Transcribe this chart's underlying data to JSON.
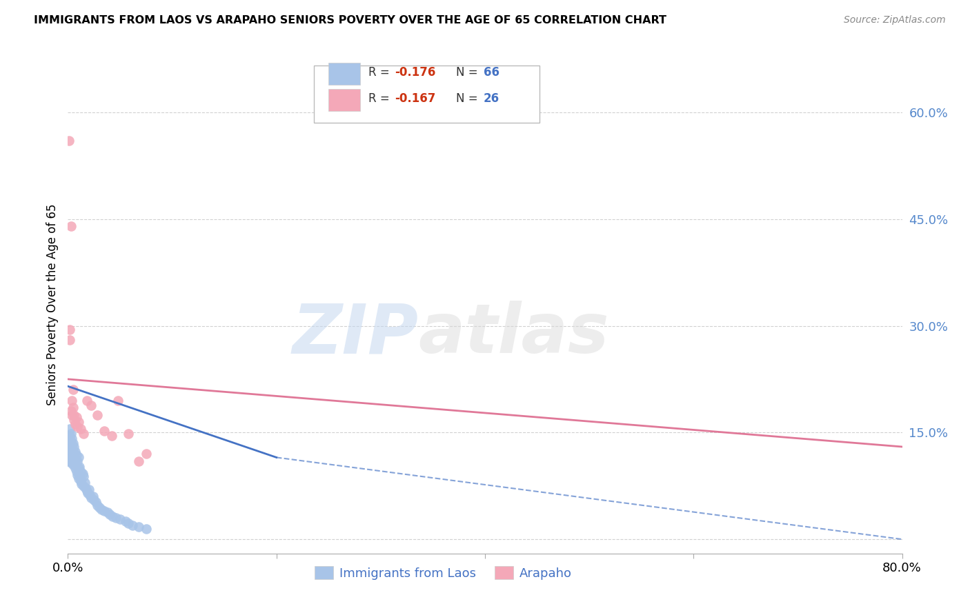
{
  "title": "IMMIGRANTS FROM LAOS VS ARAPAHO SENIORS POVERTY OVER THE AGE OF 65 CORRELATION CHART",
  "source": "Source: ZipAtlas.com",
  "ylabel": "Seniors Poverty Over the Age of 65",
  "xlim": [
    0.0,
    0.8
  ],
  "ylim": [
    -0.02,
    0.68
  ],
  "yticks": [
    0.0,
    0.15,
    0.3,
    0.45,
    0.6
  ],
  "ytick_labels": [
    "",
    "15.0%",
    "30.0%",
    "45.0%",
    "60.0%"
  ],
  "xticks": [
    0.0,
    0.2,
    0.4,
    0.6,
    0.8
  ],
  "xtick_labels": [
    "0.0%",
    "",
    "",
    "",
    "80.0%"
  ],
  "blue_label": "Immigrants from Laos",
  "pink_label": "Arapaho",
  "blue_R": "-0.176",
  "blue_N": "66",
  "pink_R": "-0.167",
  "pink_N": "26",
  "blue_color": "#a8c4e8",
  "pink_color": "#f4a8b8",
  "blue_line_color": "#4472c4",
  "pink_line_color": "#e07898",
  "watermark_zip": "ZIP",
  "watermark_atlas": "atlas",
  "blue_scatter_x": [
    0.001,
    0.001,
    0.001,
    0.002,
    0.002,
    0.002,
    0.002,
    0.002,
    0.003,
    0.003,
    0.003,
    0.003,
    0.003,
    0.004,
    0.004,
    0.004,
    0.004,
    0.005,
    0.005,
    0.005,
    0.005,
    0.006,
    0.006,
    0.006,
    0.007,
    0.007,
    0.007,
    0.008,
    0.008,
    0.009,
    0.009,
    0.01,
    0.01,
    0.01,
    0.011,
    0.011,
    0.012,
    0.012,
    0.013,
    0.014,
    0.015,
    0.015,
    0.016,
    0.017,
    0.018,
    0.019,
    0.02,
    0.021,
    0.022,
    0.024,
    0.025,
    0.027,
    0.028,
    0.03,
    0.032,
    0.035,
    0.038,
    0.04,
    0.043,
    0.046,
    0.05,
    0.055,
    0.058,
    0.062,
    0.068,
    0.075
  ],
  "blue_scatter_y": [
    0.11,
    0.12,
    0.13,
    0.115,
    0.125,
    0.135,
    0.145,
    0.155,
    0.108,
    0.118,
    0.128,
    0.138,
    0.148,
    0.112,
    0.122,
    0.132,
    0.142,
    0.105,
    0.115,
    0.125,
    0.135,
    0.11,
    0.12,
    0.13,
    0.1,
    0.113,
    0.123,
    0.095,
    0.118,
    0.09,
    0.11,
    0.085,
    0.1,
    0.115,
    0.088,
    0.102,
    0.082,
    0.095,
    0.078,
    0.092,
    0.075,
    0.088,
    0.08,
    0.072,
    0.068,
    0.065,
    0.07,
    0.062,
    0.058,
    0.06,
    0.055,
    0.052,
    0.048,
    0.045,
    0.042,
    0.04,
    0.038,
    0.035,
    0.032,
    0.03,
    0.028,
    0.025,
    0.022,
    0.02,
    0.018,
    0.015
  ],
  "pink_scatter_x": [
    0.001,
    0.002,
    0.002,
    0.003,
    0.003,
    0.004,
    0.004,
    0.005,
    0.005,
    0.006,
    0.006,
    0.007,
    0.008,
    0.009,
    0.01,
    0.012,
    0.015,
    0.018,
    0.022,
    0.028,
    0.035,
    0.042,
    0.048,
    0.058,
    0.068,
    0.075
  ],
  "pink_scatter_y": [
    0.56,
    0.28,
    0.295,
    0.44,
    0.18,
    0.175,
    0.195,
    0.185,
    0.21,
    0.168,
    0.175,
    0.162,
    0.172,
    0.158,
    0.165,
    0.155,
    0.148,
    0.195,
    0.188,
    0.175,
    0.152,
    0.145,
    0.195,
    0.148,
    0.11,
    0.12
  ],
  "blue_line_x_start": 0.0,
  "blue_line_x_solid_end": 0.2,
  "blue_line_x_end": 0.8,
  "blue_line_y_start": 0.215,
  "blue_line_y_solid_end": 0.115,
  "blue_line_y_end": 0.0,
  "pink_line_x_start": 0.0,
  "pink_line_x_end": 0.8,
  "pink_line_y_start": 0.225,
  "pink_line_y_end": 0.13
}
